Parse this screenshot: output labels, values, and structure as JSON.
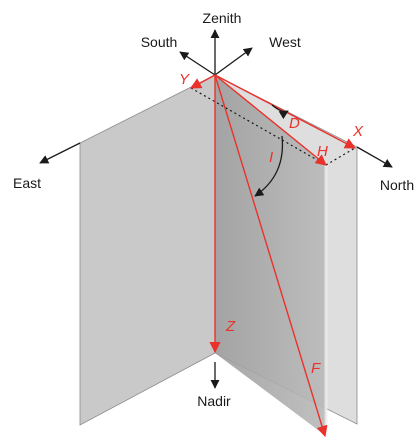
{
  "directions": {
    "zenith": "Zenith",
    "south": "South",
    "west": "West",
    "east": "East",
    "north": "North",
    "nadir": "Nadir"
  },
  "vectors": {
    "y": "Y",
    "d": "D",
    "x": "X",
    "i": "I",
    "h": "H",
    "z": "Z",
    "f": "F"
  },
  "colors": {
    "vector": "#e8322b",
    "axis": "#1a1a1a",
    "east_plane": "#c9c9c9",
    "north_plane": "#dedede",
    "vertical_plane": "#a8a8a8"
  }
}
